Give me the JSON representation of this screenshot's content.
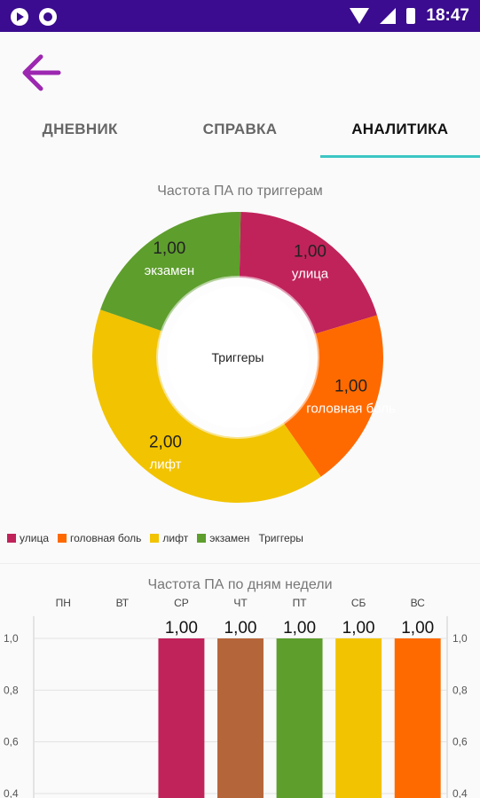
{
  "status_bar": {
    "time": "18:47"
  },
  "header": {
    "back_icon": "arrow-left-icon"
  },
  "tabs": [
    {
      "label": "ДНЕВНИК",
      "active": false
    },
    {
      "label": "СПРАВКА",
      "active": false
    },
    {
      "label": "АНАЛИТИКА",
      "active": true
    }
  ],
  "colors": {
    "status_bar": "#3b0c8f",
    "accent": "#9c27b0",
    "tab_indicator": "#3cc6c4"
  },
  "chart_data": [
    {
      "type": "pie",
      "title": "Частота ПА по триггерам",
      "center_text": "Триггеры",
      "slices": [
        {
          "label": "улица",
          "value": 1.0,
          "display": "1,00",
          "color": "#c0235a"
        },
        {
          "label": "головная боль",
          "value": 1.0,
          "display": "1,00",
          "color": "#ff6a00"
        },
        {
          "label": "лифт",
          "value": 2.0,
          "display": "2,00",
          "color": "#f2c300"
        },
        {
          "label": "экзамен",
          "value": 1.0,
          "display": "1,00",
          "color": "#5e9e2d"
        }
      ],
      "legend_title": "Триггеры",
      "legend_placement": "bottom-left"
    },
    {
      "type": "bar",
      "title": "Частота ПА по дням недели",
      "categories": [
        "ПН",
        "ВТ",
        "СР",
        "ЧТ",
        "ПТ",
        "СБ",
        "ВС"
      ],
      "values": [
        null,
        null,
        1.0,
        1.0,
        1.0,
        1.0,
        1.0
      ],
      "value_labels": [
        "",
        "",
        "1,00",
        "1,00",
        "1,00",
        "1,00",
        "1,00"
      ],
      "colors": [
        "#c0235a",
        "#c0235a",
        "#c0235a",
        "#b5653a",
        "#5e9e2d",
        "#f2c300",
        "#ff6a00"
      ],
      "y_ticks": [
        "1,0",
        "0,8",
        "0,6",
        "0,4"
      ],
      "ylim": [
        0.4,
        1.0
      ],
      "grid": true
    }
  ]
}
